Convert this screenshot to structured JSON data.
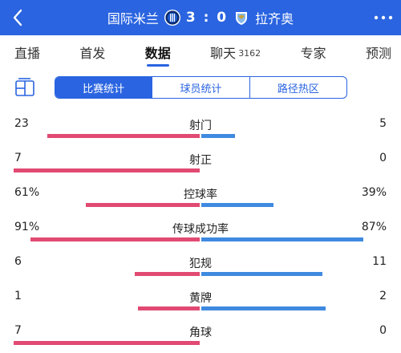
{
  "colors": {
    "header_bg": "#2a64e0",
    "home_bar": "#e14a72",
    "away_bar": "#3f8ae0"
  },
  "header": {
    "home_team": "国际米兰",
    "away_team": "拉齐奥",
    "score": "3 : 0",
    "home_logo_icon": "inter-logo-icon",
    "away_logo_icon": "lazio-logo-icon",
    "more_icon": "more-dots-icon",
    "back_icon": "chevron-left-icon"
  },
  "tabs": [
    {
      "label": "直播",
      "count": ""
    },
    {
      "label": "首发",
      "count": ""
    },
    {
      "label": "数据",
      "count": "",
      "active": true
    },
    {
      "label": "聊天",
      "count": "3162"
    },
    {
      "label": "专家",
      "count": ""
    },
    {
      "label": "预测",
      "count": ""
    }
  ],
  "segments": [
    {
      "label": "比赛统计",
      "active": true
    },
    {
      "label": "球员统计"
    },
    {
      "label": "路径热区"
    }
  ],
  "stats": [
    {
      "name": "射门",
      "home": "23",
      "away": "5",
      "home_share": 0.82,
      "away_share": 0.18
    },
    {
      "name": "射正",
      "home": "7",
      "away": "0",
      "home_share": 1.0,
      "away_share": 0.0
    },
    {
      "name": "控球率",
      "home": "61%",
      "away": "39%",
      "home_share": 0.61,
      "away_share": 0.39
    },
    {
      "name": "传球成功率",
      "home": "91%",
      "away": "87%",
      "home_share": 0.91,
      "away_share": 0.87
    },
    {
      "name": "犯规",
      "home": "6",
      "away": "11",
      "home_share": 0.35,
      "away_share": 0.65
    },
    {
      "name": "黄牌",
      "home": "1",
      "away": "2",
      "home_share": 0.33,
      "away_share": 0.67
    },
    {
      "name": "角球",
      "home": "7",
      "away": "0",
      "home_share": 1.0,
      "away_share": 0.0
    }
  ]
}
